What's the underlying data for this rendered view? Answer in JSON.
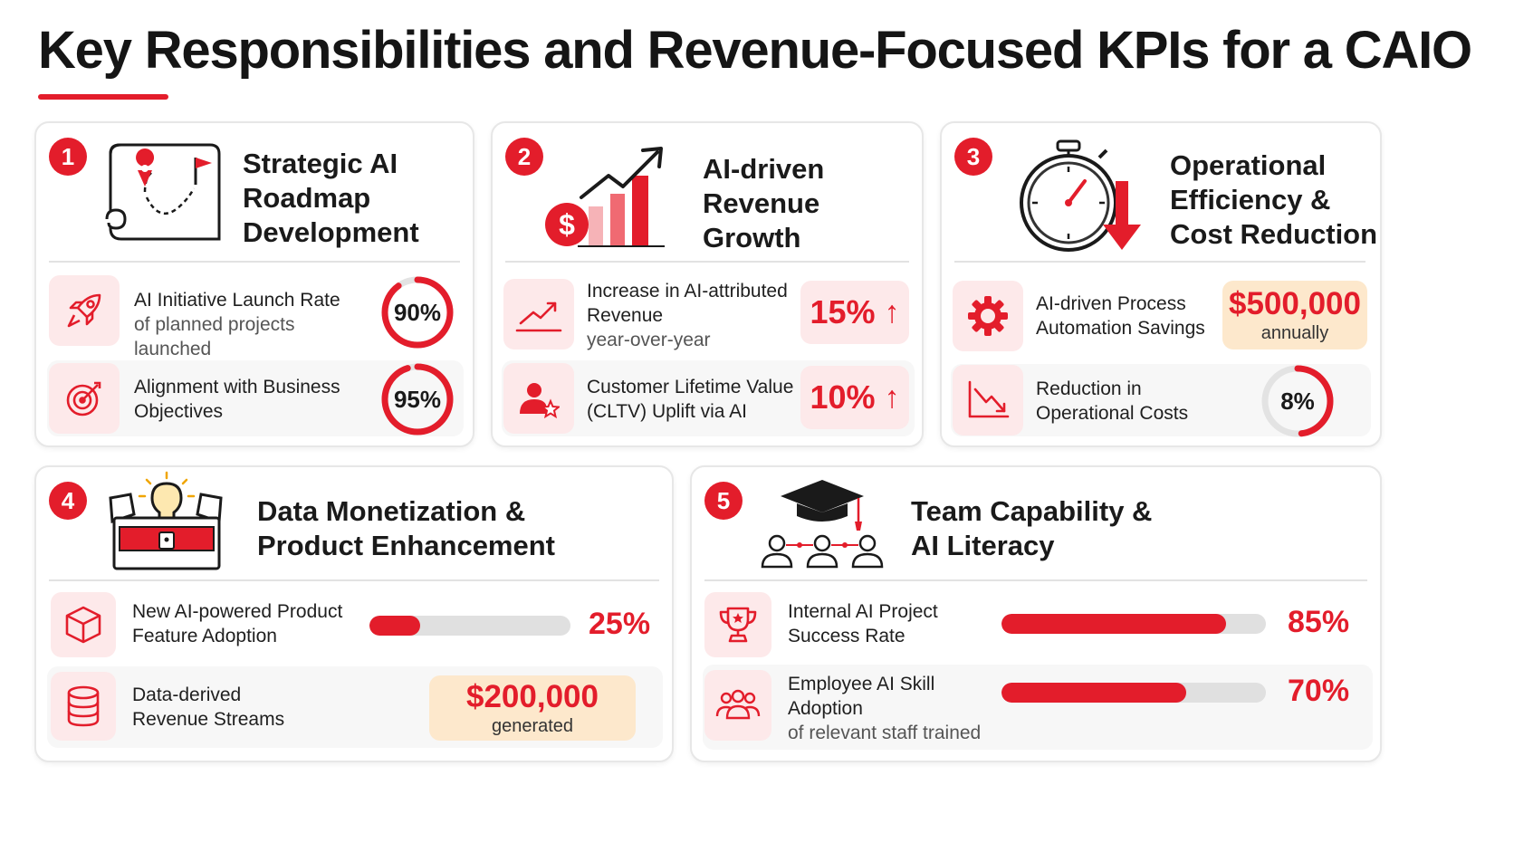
{
  "title": "Key Responsibilities and Revenue-Focused KPIs for a CAIO",
  "colors": {
    "accent": "#e31d2b",
    "accent_light": "#fde9ea",
    "money_bg": "#fde8cc",
    "track": "#e0e0e0"
  },
  "cards": [
    {
      "number": "1",
      "icon": "roadmap-map-icon",
      "title": [
        "Strategic AI",
        "Roadmap",
        "Development"
      ],
      "kpis": [
        {
          "icon": "rocket-icon",
          "label": "AI Initiative Launch Rate",
          "sub": "of planned projects launched",
          "value": "90%",
          "percent": 90
        },
        {
          "icon": "target-icon",
          "label": "Alignment with Business Objectives",
          "value": "95%",
          "percent": 95
        }
      ]
    },
    {
      "number": "2",
      "icon": "revenue-growth-chart-icon",
      "title": [
        "AI-driven",
        "Revenue",
        "Growth"
      ],
      "kpis": [
        {
          "icon": "trend-up-icon",
          "label": "Increase in AI-attributed Revenue",
          "sub": "year-over-year",
          "value": "15%",
          "percent": 15
        },
        {
          "icon": "customer-star-icon",
          "label": "Customer Lifetime Value (CLTV) Uplift via AI",
          "value": "10%",
          "percent": 10
        }
      ]
    },
    {
      "number": "3",
      "icon": "stopwatch-down-icon",
      "title": [
        "Operational",
        "Efficiency &",
        "Cost Reduction"
      ],
      "kpis": [
        {
          "icon": "gear-icon",
          "label": "AI-driven Process Automation Savings",
          "value": "$500,000",
          "sub": "annually"
        },
        {
          "icon": "trend-down-icon",
          "label": "Reduction in Operational Costs",
          "value": "8%",
          "percent": 8
        }
      ]
    },
    {
      "number": "4",
      "icon": "treasure-chest-lightbulb-icon",
      "title": [
        "Data Monetization &",
        "Product Enhancement"
      ],
      "kpis": [
        {
          "icon": "cube-icon",
          "label": "New AI-powered Product Feature Adoption",
          "value": "25%",
          "percent": 25
        },
        {
          "icon": "database-icon",
          "label": "Data-derived Revenue Streams",
          "value": "$200,000",
          "sub": "generated"
        }
      ]
    },
    {
      "number": "5",
      "icon": "graduation-team-icon",
      "title": [
        "Team Capability &",
        "AI Literacy"
      ],
      "kpis": [
        {
          "icon": "trophy-icon",
          "label": "Internal AI Project Success Rate",
          "value": "85%",
          "percent": 85
        },
        {
          "icon": "team-icon",
          "label": "Employee AI Skill Adoption",
          "sub": "of relevant staff trained",
          "value": "70%",
          "percent": 70
        }
      ]
    }
  ]
}
